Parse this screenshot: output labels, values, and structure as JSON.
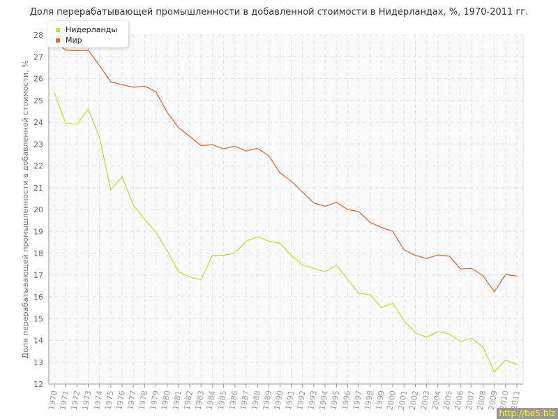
{
  "chart_data": {
    "type": "line",
    "title": "Доля перерабатывающей промышленности в добавленной стоимости в Нидерландах, %, 1970-2011 гг.",
    "ylabel": "Доля перерабатывающей промышленности в добавленной стоимости, %",
    "xlabel": "",
    "ylim": [
      12,
      28
    ],
    "yticks": [
      12,
      13,
      14,
      15,
      16,
      17,
      18,
      19,
      20,
      21,
      22,
      23,
      24,
      25,
      26,
      27,
      28
    ],
    "grid": true,
    "legend_placement": "top-left",
    "x": [
      1970,
      1971,
      1972,
      1973,
      1974,
      1975,
      1976,
      1977,
      1978,
      1979,
      1980,
      1981,
      1982,
      1983,
      1984,
      1985,
      1986,
      1987,
      1988,
      1989,
      1990,
      1991,
      1992,
      1993,
      1994,
      1995,
      1996,
      1997,
      1998,
      1999,
      2000,
      2001,
      2002,
      2003,
      2004,
      2005,
      2006,
      2007,
      2008,
      2009,
      2010,
      2011
    ],
    "series": [
      {
        "name": "Нидерланды",
        "color": "#c5e03a",
        "values": [
          25.35,
          23.95,
          23.9,
          24.6,
          23.3,
          20.9,
          21.5,
          20.2,
          19.55,
          18.95,
          18.1,
          17.15,
          16.9,
          16.78,
          17.9,
          17.9,
          18.0,
          18.55,
          18.75,
          18.55,
          18.45,
          17.9,
          17.45,
          17.3,
          17.15,
          17.45,
          16.8,
          16.15,
          16.1,
          15.5,
          15.7,
          14.9,
          14.35,
          14.15,
          14.4,
          14.3,
          13.95,
          14.1,
          13.7,
          12.55,
          13.1,
          12.9
        ]
      },
      {
        "name": "Мир",
        "color": "#e8683a",
        "values": [
          27.7,
          27.3,
          27.28,
          27.3,
          26.6,
          25.85,
          25.72,
          25.6,
          25.65,
          25.4,
          24.45,
          23.75,
          23.35,
          22.93,
          22.97,
          22.78,
          22.9,
          22.68,
          22.8,
          22.47,
          21.68,
          21.3,
          20.8,
          20.3,
          20.15,
          20.33,
          20.0,
          19.9,
          19.4,
          19.18,
          19.0,
          18.15,
          17.9,
          17.75,
          17.92,
          17.87,
          17.28,
          17.3,
          16.97,
          16.23,
          17.02,
          16.95
        ]
      }
    ]
  },
  "watermark": "http://be5.biz"
}
